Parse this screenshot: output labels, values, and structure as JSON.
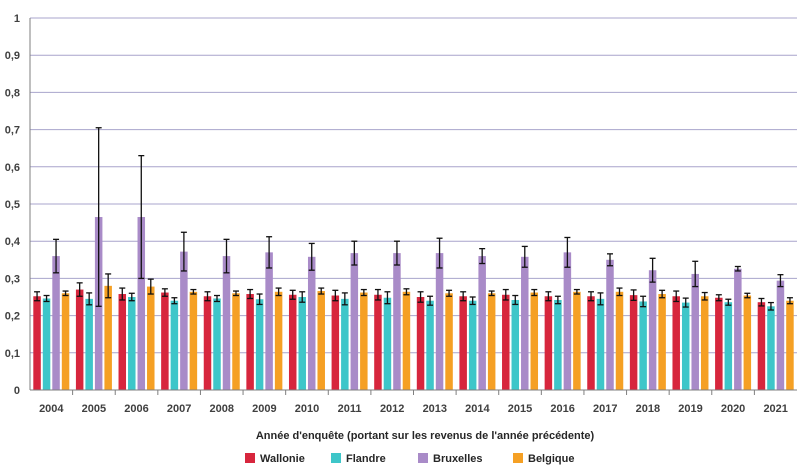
{
  "chart_data": {
    "type": "bar",
    "title": "",
    "xlabel": "Année d'enquête (portant sur les revenus de l'année précédente)",
    "ylabel": "",
    "ylim": [
      0,
      1
    ],
    "yticks": [
      "0",
      "0,1",
      "0,2",
      "0,3",
      "0,4",
      "0,5",
      "0,6",
      "0,7",
      "0,8",
      "0,9",
      "1"
    ],
    "grid": true,
    "legend_position": "bottom",
    "error_bars": true,
    "categories": [
      "2004",
      "2005",
      "2006",
      "2007",
      "2008",
      "2009",
      "2010",
      "2011",
      "2012",
      "2013",
      "2014",
      "2015",
      "2016",
      "2017",
      "2018",
      "2019",
      "2020",
      "2021"
    ],
    "series": [
      {
        "name": "Wallonie",
        "color": "#d7263d",
        "values": [
          0.252,
          0.27,
          0.258,
          0.262,
          0.252,
          0.258,
          0.256,
          0.254,
          0.256,
          0.25,
          0.252,
          0.256,
          0.252,
          0.252,
          0.255,
          0.252,
          0.248,
          0.236
        ],
        "errors": [
          0.012,
          0.018,
          0.016,
          0.01,
          0.012,
          0.012,
          0.012,
          0.014,
          0.014,
          0.014,
          0.012,
          0.014,
          0.012,
          0.012,
          0.014,
          0.014,
          0.008,
          0.01
        ]
      },
      {
        "name": "Flandre",
        "color": "#3ec6c9",
        "values": [
          0.246,
          0.245,
          0.25,
          0.24,
          0.246,
          0.244,
          0.25,
          0.245,
          0.248,
          0.24,
          0.24,
          0.242,
          0.242,
          0.245,
          0.238,
          0.235,
          0.236,
          0.225
        ],
        "errors": [
          0.008,
          0.016,
          0.01,
          0.008,
          0.008,
          0.014,
          0.014,
          0.016,
          0.016,
          0.012,
          0.01,
          0.012,
          0.01,
          0.016,
          0.014,
          0.012,
          0.008,
          0.01
        ]
      },
      {
        "name": "Bruxelles",
        "color": "#a98bc8",
        "values": [
          0.36,
          0.465,
          0.465,
          0.372,
          0.36,
          0.37,
          0.358,
          0.368,
          0.368,
          0.368,
          0.36,
          0.358,
          0.37,
          0.35,
          0.322,
          0.312,
          0.326,
          0.294
        ],
        "errors": [
          0.045,
          0.24,
          0.165,
          0.052,
          0.045,
          0.042,
          0.036,
          0.032,
          0.032,
          0.04,
          0.02,
          0.028,
          0.04,
          0.016,
          0.032,
          0.034,
          0.006,
          0.016
        ]
      },
      {
        "name": "Belgique",
        "color": "#f5a024",
        "values": [
          0.26,
          0.28,
          0.278,
          0.264,
          0.26,
          0.264,
          0.266,
          0.262,
          0.264,
          0.26,
          0.26,
          0.262,
          0.264,
          0.264,
          0.258,
          0.252,
          0.254,
          0.24
        ],
        "errors": [
          0.006,
          0.032,
          0.02,
          0.006,
          0.006,
          0.01,
          0.008,
          0.008,
          0.008,
          0.008,
          0.006,
          0.008,
          0.006,
          0.01,
          0.01,
          0.01,
          0.006,
          0.008
        ]
      }
    ]
  }
}
